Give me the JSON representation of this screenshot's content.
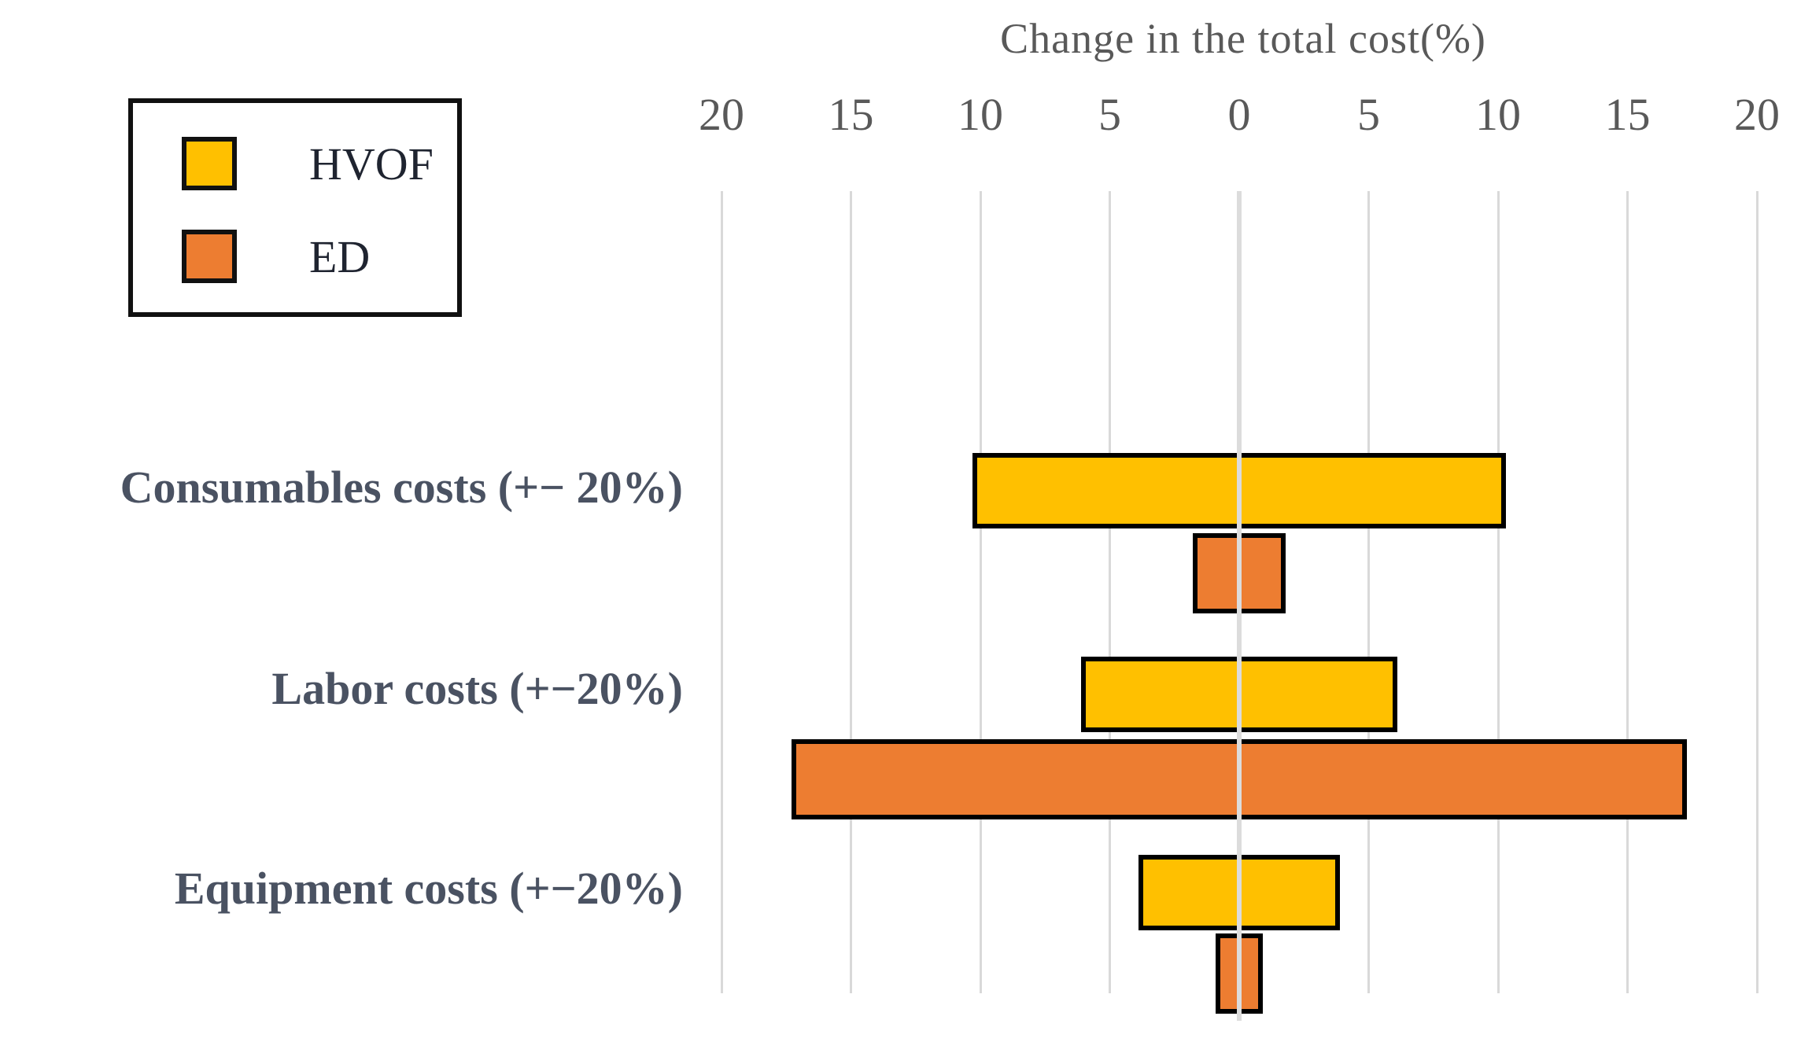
{
  "figure": {
    "background": "#ffffff"
  },
  "chart_data": {
    "type": "bar",
    "variant": "tornado-horizontal",
    "title": "Change in the total cost(%)",
    "categories": [
      "Consumables costs (+− 20%)",
      "Labor costs (+−20%)",
      "Equipment costs (+−20%)"
    ],
    "series": [
      {
        "name": "HVOF",
        "color": "#FFC000",
        "low": [
          -10.3,
          -6.1,
          -3.9
        ],
        "high": [
          10.3,
          6.1,
          3.9
        ]
      },
      {
        "name": "ED",
        "color": "#ED7D31",
        "low": [
          -1.8,
          -17.3,
          -0.9
        ],
        "high": [
          1.8,
          17.3,
          0.9
        ]
      }
    ],
    "xlabel": "Change in the total cost(%)",
    "xlim": [
      -20,
      20
    ],
    "xtick_step": 5,
    "xtick_labels": [
      "20",
      "15",
      "10",
      "5",
      "0",
      "5",
      "10",
      "15",
      "20"
    ],
    "grid": true,
    "zero_line_over_bars": true,
    "legend_position": "top-left",
    "colors": {
      "gridline": "#d9d9d9",
      "bar_outline": "#000000",
      "tick_text": "#595959",
      "title_text": "#595959",
      "category_text": "#4a5262",
      "legend_text": "#1f2430",
      "legend_border": "#111111"
    }
  }
}
